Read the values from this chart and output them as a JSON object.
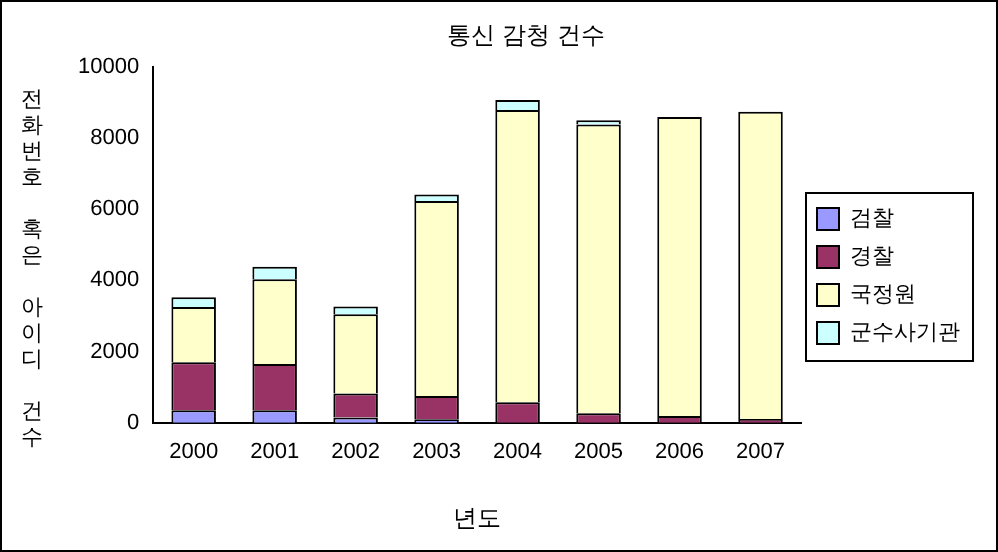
{
  "chart_data": {
    "type": "bar",
    "title": "통신 감청 건수",
    "xlabel": "년도",
    "ylabel": "전화번호 혹은 아이디 건수",
    "stacked": true,
    "legend": "right",
    "grid": false,
    "categories": [
      "2000",
      "2001",
      "2002",
      "2003",
      "2004",
      "2005",
      "2006",
      "2007"
    ],
    "ylim": [
      0,
      10000
    ],
    "yticks": [
      0,
      2000,
      4000,
      6000,
      8000,
      10000
    ],
    "series": [
      {
        "name": "검찰",
        "color": "#9999ff",
        "values": [
          350,
          350,
          150,
          100,
          null,
          null,
          null,
          null
        ]
      },
      {
        "name": "경찰",
        "color": "#993366",
        "values": [
          1350,
          1300,
          670,
          650,
          580,
          270,
          190,
          110
        ]
      },
      {
        "name": "국정원",
        "color": "#ffffcc",
        "values": [
          1550,
          2380,
          2230,
          5480,
          8210,
          8110,
          8400,
          8630
        ]
      },
      {
        "name": "군수사기관",
        "color": "#ccffff",
        "values": [
          280,
          350,
          220,
          180,
          280,
          120,
          null,
          null
        ]
      }
    ]
  }
}
